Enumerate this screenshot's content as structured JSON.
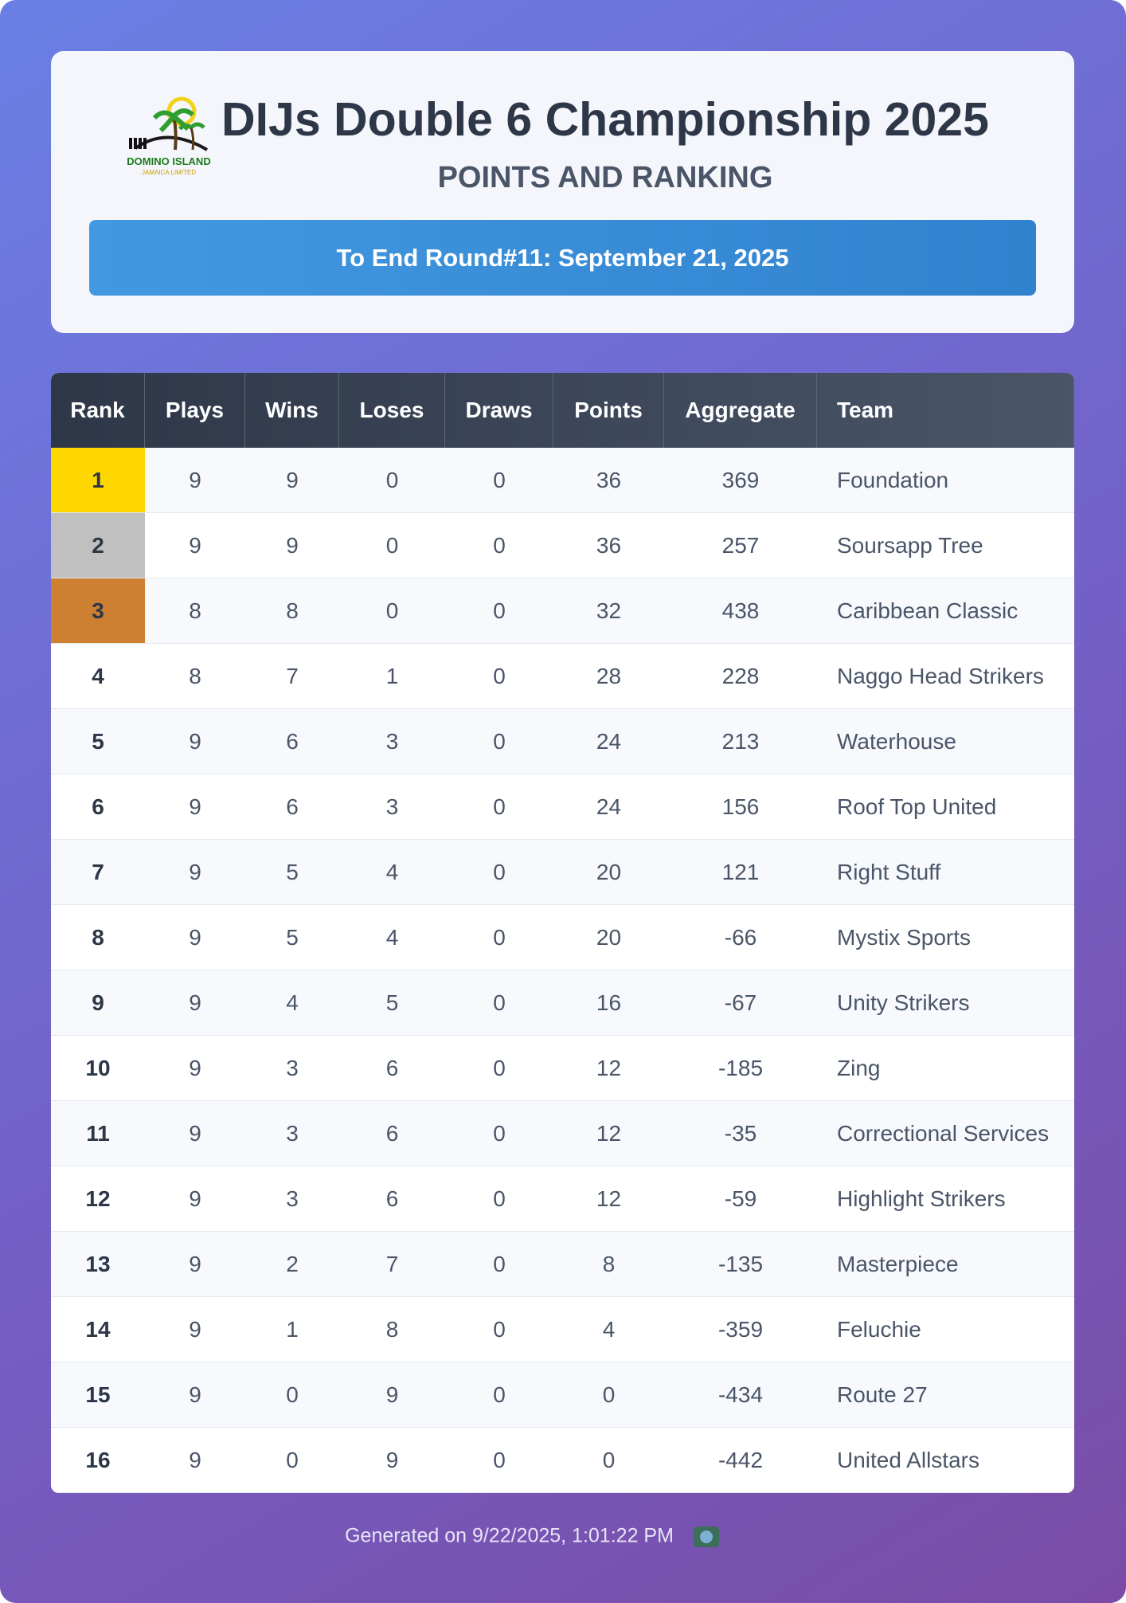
{
  "header": {
    "title": "DIJs  Double 6 Championship  2025",
    "subtitle": "POINTS AND RANKING",
    "banner": "To End Round#11: September 21, 2025",
    "logo_text": "DOMINO ISLAND",
    "logo_subtext": "JAMAICA LIMITED"
  },
  "table": {
    "columns": [
      "Rank",
      "Plays",
      "Wins",
      "Loses",
      "Draws",
      "Points",
      "Aggregate",
      "Team"
    ],
    "rows": [
      [
        1,
        9,
        9,
        0,
        0,
        36,
        369,
        "Foundation"
      ],
      [
        2,
        9,
        9,
        0,
        0,
        36,
        257,
        "Soursapp Tree"
      ],
      [
        3,
        8,
        8,
        0,
        0,
        32,
        438,
        "Caribbean Classic"
      ],
      [
        4,
        8,
        7,
        1,
        0,
        28,
        228,
        "Naggo Head Strikers"
      ],
      [
        5,
        9,
        6,
        3,
        0,
        24,
        213,
        "Waterhouse"
      ],
      [
        6,
        9,
        6,
        3,
        0,
        24,
        156,
        "Roof Top United"
      ],
      [
        7,
        9,
        5,
        4,
        0,
        20,
        121,
        "Right Stuff"
      ],
      [
        8,
        9,
        5,
        4,
        0,
        20,
        -66,
        "Mystix Sports"
      ],
      [
        9,
        9,
        4,
        5,
        0,
        16,
        -67,
        "Unity Strikers"
      ],
      [
        10,
        9,
        3,
        6,
        0,
        12,
        -185,
        "Zing"
      ],
      [
        11,
        9,
        3,
        6,
        0,
        12,
        -35,
        "Correctional Services"
      ],
      [
        12,
        9,
        3,
        6,
        0,
        12,
        -59,
        "Highlight Strikers"
      ],
      [
        13,
        9,
        2,
        7,
        0,
        8,
        -135,
        "Masterpiece"
      ],
      [
        14,
        9,
        1,
        8,
        0,
        4,
        -359,
        "Feluchie"
      ],
      [
        15,
        9,
        0,
        9,
        0,
        0,
        -434,
        "Route 27"
      ],
      [
        16,
        9,
        0,
        9,
        0,
        0,
        -442,
        "United Allstars"
      ]
    ]
  },
  "footer": {
    "text": "Generated on 9/22/2025, 1:01:22 PM"
  }
}
